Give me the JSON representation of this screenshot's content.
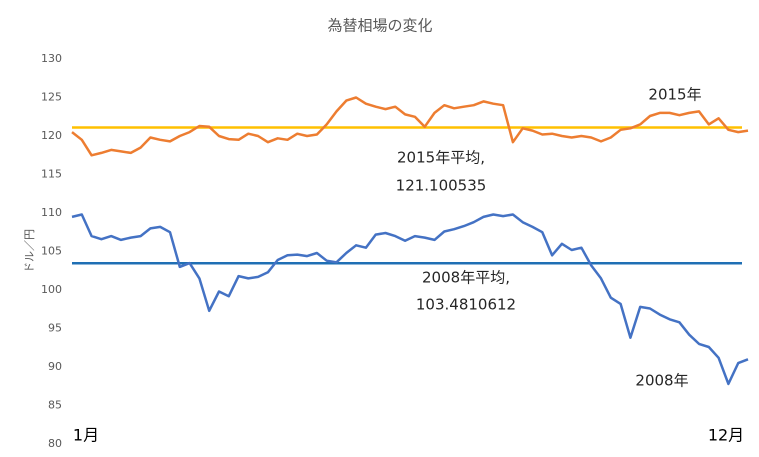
{
  "chart_data": {
    "type": "line",
    "title": "為替相場の変化",
    "y_label": "ドル／円",
    "categories": [
      "1月",
      null,
      null,
      null,
      null,
      null,
      null,
      null,
      null,
      null,
      null,
      null,
      null,
      null,
      null,
      null,
      null,
      null,
      null,
      null,
      null,
      null,
      null,
      null,
      null,
      null,
      null,
      null,
      null,
      null,
      null,
      null,
      null,
      null,
      null,
      null,
      null,
      null,
      null,
      null,
      null,
      null,
      null,
      null,
      null,
      null,
      null,
      null,
      null,
      null,
      null,
      null,
      null,
      null,
      null,
      null,
      null,
      null,
      null,
      null,
      null,
      null,
      null,
      null,
      null,
      null,
      null,
      null,
      null,
      "12月"
    ],
    "series": [
      {
        "name": "2015年",
        "color": "#ed7d31",
        "values": [
          120.5,
          119.5,
          117.5,
          117.8,
          118.2,
          118,
          117.8,
          118.5,
          119.8,
          119.5,
          119.3,
          120,
          120.5,
          121.3,
          121.2,
          120,
          119.6,
          119.5,
          120.3,
          120,
          119.2,
          119.7,
          119.5,
          120.3,
          120,
          120.2,
          121.5,
          123.2,
          124.6,
          125,
          124.2,
          123.8,
          123.5,
          123.8,
          122.8,
          122.5,
          121.2,
          123,
          124,
          123.6,
          123.8,
          124,
          124.5,
          124.2,
          124,
          119.2,
          121,
          120.7,
          120.2,
          120.3,
          120,
          119.8,
          120,
          119.8,
          119.3,
          119.8,
          120.8,
          121,
          121.5,
          122.6,
          123,
          123,
          122.7,
          123,
          123.2,
          121.5,
          122.3,
          120.8,
          120.5,
          120.7
        ]
      },
      {
        "name": "2008年",
        "color": "#4472c4",
        "values": [
          109.5,
          109.8,
          107,
          106.6,
          107,
          106.5,
          106.8,
          107,
          108,
          108.2,
          107.5,
          103,
          103.5,
          101.5,
          97.3,
          99.8,
          99.2,
          101.8,
          101.5,
          101.7,
          102.3,
          103.9,
          104.5,
          104.6,
          104.4,
          104.8,
          103.8,
          103.6,
          104.8,
          105.8,
          105.5,
          107.2,
          107.4,
          107,
          106.4,
          107,
          106.8,
          106.5,
          107.6,
          107.9,
          108.3,
          108.8,
          109.5,
          109.8,
          109.6,
          109.8,
          108.8,
          108.2,
          107.5,
          104.5,
          106,
          105.2,
          105.5,
          103.2,
          101.5,
          99,
          98.2,
          93.8,
          97.8,
          97.6,
          96.8,
          96.2,
          95.8,
          94.2,
          93,
          92.6,
          91.2,
          87.8,
          90.5,
          91
        ]
      }
    ],
    "reference_lines": [
      {
        "label": "2015年平均,",
        "value": 121.100535,
        "color": "#ffc000"
      },
      {
        "label": "2008年平均,",
        "value": 103.4810612,
        "color": "#1f6fb4"
      }
    ],
    "ylim": [
      80,
      130
    ],
    "yticks": [
      80,
      85,
      90,
      95,
      100,
      105,
      110,
      115,
      120,
      125,
      130
    ],
    "grid": false
  }
}
